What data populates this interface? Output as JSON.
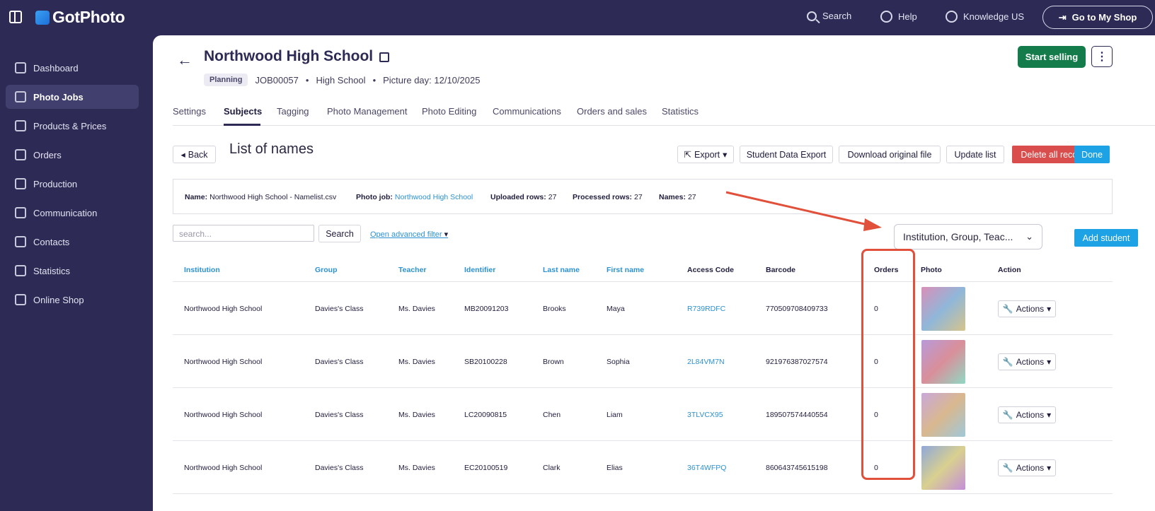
{
  "brand": {
    "name": "GotPhoto"
  },
  "topnav": {
    "search": "Search",
    "help": "Help",
    "account": "Knowledge US",
    "shop_button": "Go to My Shop"
  },
  "sidebar": {
    "items": [
      {
        "label": "Dashboard",
        "icon": "home-icon"
      },
      {
        "label": "Photo Jobs",
        "icon": "image-icon",
        "active": true
      },
      {
        "label": "Products & Prices",
        "icon": "cart-icon"
      },
      {
        "label": "Orders",
        "icon": "box-icon"
      },
      {
        "label": "Production",
        "icon": "printer-icon"
      },
      {
        "label": "Communication",
        "icon": "message-icon"
      },
      {
        "label": "Contacts",
        "icon": "person-icon"
      },
      {
        "label": "Statistics",
        "icon": "chart-icon"
      },
      {
        "label": "Online Shop",
        "icon": "store-icon"
      }
    ]
  },
  "header": {
    "title": "Northwood High School",
    "status": "Planning",
    "job_id": "JOB00057",
    "category": "High School",
    "picture_day": "Picture day: 12/10/2025",
    "start_selling": "Start selling"
  },
  "tabs": [
    "Settings",
    "Subjects",
    "Tagging",
    "Photo Management",
    "Photo Editing",
    "Communications",
    "Orders and sales",
    "Statistics"
  ],
  "active_tab": "Subjects",
  "list": {
    "back": "Back",
    "title": "List of names",
    "export": "Export",
    "student_data_export": "Student Data Export",
    "download_original": "Download original file",
    "update_list": "Update list",
    "delete_all": "Delete all records",
    "done": "Done"
  },
  "info": {
    "name_label": "Name:",
    "name_value": "Northwood High School - Namelist.csv",
    "job_label": "Photo job:",
    "job_value": "Northwood High School",
    "uploaded_label": "Uploaded rows:",
    "uploaded_value": "27",
    "processed_label": "Processed rows:",
    "processed_value": "27",
    "names_label": "Names:",
    "names_value": "27"
  },
  "filter": {
    "placeholder": "search...",
    "search_button": "Search",
    "advanced": "Open advanced filter",
    "columns_select": "Institution, Group, Teac...",
    "add_student": "Add student"
  },
  "table": {
    "headers": [
      "Institution",
      "Group",
      "Teacher",
      "Identifier",
      "Last name",
      "First name",
      "Access Code",
      "Barcode",
      "Orders",
      "Photo",
      "Action"
    ],
    "rows": [
      {
        "institution": "Northwood High School",
        "group": "Davies's Class",
        "teacher": "Ms. Davies",
        "identifier": "MB20091203",
        "last": "Brooks",
        "first": "Maya",
        "code": "R739RDFC",
        "barcode": "770509708409733",
        "orders": "0",
        "action": "Actions"
      },
      {
        "institution": "Northwood High School",
        "group": "Davies's Class",
        "teacher": "Ms. Davies",
        "identifier": "SB20100228",
        "last": "Brown",
        "first": "Sophia",
        "code": "2L84VM7N",
        "barcode": "921976387027574",
        "orders": "0",
        "action": "Actions"
      },
      {
        "institution": "Northwood High School",
        "group": "Davies's Class",
        "teacher": "Ms. Davies",
        "identifier": "LC20090815",
        "last": "Chen",
        "first": "Liam",
        "code": "3TLVCX95",
        "barcode": "189507574440554",
        "orders": "0",
        "action": "Actions"
      },
      {
        "institution": "Northwood High School",
        "group": "Davies's Class",
        "teacher": "Ms. Davies",
        "identifier": "EC20100519",
        "last": "Clark",
        "first": "Elias",
        "code": "36T4WFPQ",
        "barcode": "860643745615198",
        "orders": "0",
        "action": "Actions"
      }
    ]
  },
  "colors": {
    "sidebar": "#2d2b55",
    "primary_green": "#137c4a",
    "accent_blue": "#1ca2e5",
    "danger": "#d94d4d",
    "annotation": "#e0503a"
  }
}
